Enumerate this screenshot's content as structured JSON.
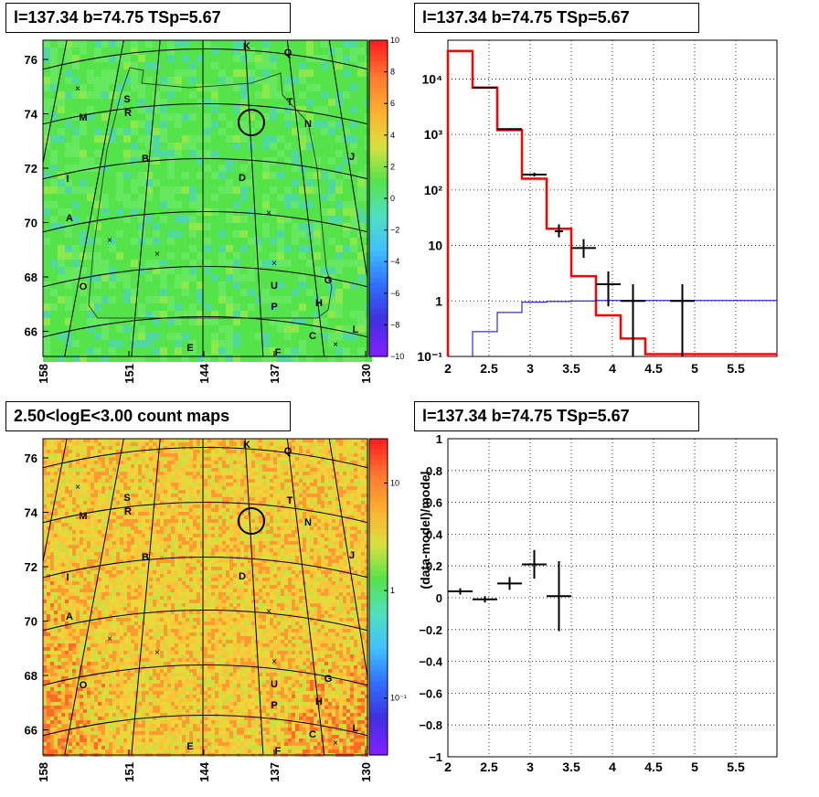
{
  "panels": {
    "tl_title": "l=137.34 b=74.75 TSp=5.67",
    "tr_title": "l=137.34 b=74.75 TSp=5.67",
    "bl_title": "2.50<logE<3.00 count maps",
    "br_title": "l=137.34 b=74.75 TSp=5.67"
  },
  "map": {
    "x_ticks": [
      "158",
      "151",
      "144",
      "137",
      "130"
    ],
    "y_ticks": [
      "76",
      "74",
      "72",
      "70",
      "68",
      "66"
    ],
    "source_labels": [
      "K",
      "Q",
      "S",
      "R",
      "T",
      "M",
      "N",
      "B",
      "J",
      "I",
      "D",
      "A",
      "G",
      "O",
      "U",
      "H",
      "P",
      "C",
      "L",
      "E",
      "F"
    ],
    "residual_colorbar_ticks": [
      "10",
      "8",
      "6",
      "4",
      "2",
      "0",
      "−2",
      "−4",
      "−6",
      "−8",
      "−10"
    ],
    "count_colorbar_ticks": [
      "10",
      "1",
      "10⁻¹"
    ]
  },
  "chart_data": [
    {
      "type": "line",
      "title": "l=137.34 b=74.75 TSp=5.67",
      "xlabel": "",
      "ylabel": "",
      "xlim": [
        2,
        6
      ],
      "ylim": [
        0.1,
        50000
      ],
      "yscale": "log",
      "grid": true,
      "x_ticks": [
        "2",
        "2.5",
        "3",
        "3.5",
        "4",
        "4.5",
        "5",
        "5.5"
      ],
      "y_ticks": [
        "10⁴",
        "10³",
        "10²",
        "10",
        "1",
        "10⁻¹"
      ],
      "series": [
        {
          "color": "#ff0000",
          "style": "step",
          "edges": [
            2,
            2.3,
            2.6,
            2.9,
            3.2,
            3.5,
            3.8,
            4.1,
            4.4,
            4.7,
            6
          ],
          "values": [
            32000,
            7000,
            1200,
            160,
            20,
            2.8,
            0.55,
            0.21,
            0.11,
            0.11
          ]
        },
        {
          "color": "#0000cc",
          "style": "step",
          "edges": [
            2.3,
            2.6,
            2.9,
            3.2,
            3.5,
            3.8,
            6
          ],
          "values": [
            0.28,
            0.62,
            0.95,
            0.98,
            1.0,
            1.02
          ]
        },
        {
          "color": "#000000",
          "style": "errorbars",
          "points": [
            {
              "x": 2.45,
              "xerr": 0.15,
              "y": 7000,
              "ylo": 6900,
              "yhi": 7100
            },
            {
              "x": 2.75,
              "xerr": 0.15,
              "y": 1250,
              "ylo": 1200,
              "yhi": 1300
            },
            {
              "x": 3.05,
              "xerr": 0.15,
              "y": 190,
              "ylo": 175,
              "yhi": 205
            },
            {
              "x": 3.35,
              "xerr": 0.05,
              "y": 18,
              "ylo": 14,
              "yhi": 24
            },
            {
              "x": 3.65,
              "xerr": 0.15,
              "y": 9,
              "ylo": 6,
              "yhi": 13
            },
            {
              "x": 3.95,
              "xerr": 0.15,
              "y": 2,
              "ylo": 0.8,
              "yhi": 3.4
            },
            {
              "x": 4.25,
              "xerr": 0.15,
              "y": 1,
              "ylo": 0.1,
              "yhi": 2
            },
            {
              "x": 4.85,
              "xerr": 0.15,
              "y": 1,
              "ylo": 0.1,
              "yhi": 2
            }
          ]
        }
      ]
    },
    {
      "type": "scatter",
      "title": "l=137.34 b=74.75 TSp=5.67",
      "xlabel": "",
      "ylabel": "(data-model)/model",
      "xlim": [
        2,
        6
      ],
      "ylim": [
        -1,
        1
      ],
      "grid": true,
      "x_ticks": [
        "2",
        "2.5",
        "3",
        "3.5",
        "4",
        "4.5",
        "5",
        "5.5"
      ],
      "y_ticks": [
        "1",
        "0.8",
        "0.6",
        "0.4",
        "0.2",
        "0",
        "−0.2",
        "−0.4",
        "−0.6",
        "−0.8",
        "−1"
      ],
      "points": [
        {
          "x": 2.15,
          "xerr": 0.15,
          "y": 0.04,
          "yerr": 0.02
        },
        {
          "x": 2.45,
          "xerr": 0.15,
          "y": -0.01,
          "yerr": 0.02
        },
        {
          "x": 2.75,
          "xerr": 0.15,
          "y": 0.09,
          "yerr": 0.04
        },
        {
          "x": 3.05,
          "xerr": 0.15,
          "y": 0.21,
          "yerr": 0.09
        },
        {
          "x": 3.35,
          "xerr": 0.15,
          "y": 0.01,
          "yerr": 0.22
        }
      ]
    }
  ]
}
